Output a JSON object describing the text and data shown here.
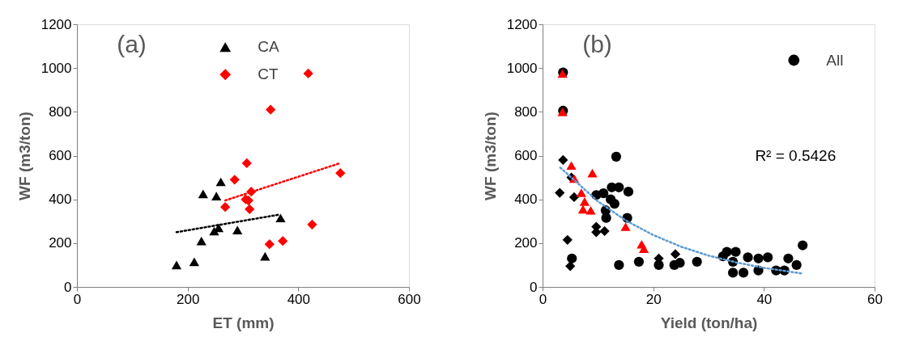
{
  "chart_data": [
    {
      "type": "scatter",
      "xlabel": "ET (mm)",
      "ylabel": "WF (m3/ton)",
      "xlim": [
        0,
        600
      ],
      "ylim": [
        0,
        1200
      ],
      "xticks": [
        0,
        200,
        400,
        600
      ],
      "yticks": [
        0,
        200,
        400,
        600,
        800,
        1000,
        1200
      ],
      "grid": false,
      "legend": "top",
      "annotations": [
        "(a)"
      ],
      "series": [
        {
          "name": "CA",
          "marker": "triangle",
          "color": "#000000",
          "x": [
            180,
            212,
            225,
            228,
            248,
            256,
            252,
            260,
            290,
            340,
            368
          ],
          "values": [
            100,
            115,
            210,
            425,
            255,
            270,
            415,
            480,
            260,
            140,
            315
          ]
        },
        {
          "name": "CT",
          "marker": "diamond",
          "color": "#ff0000",
          "x": [
            268,
            285,
            307,
            305,
            315,
            312,
            350,
            348,
            372,
            418,
            425,
            476,
            310
          ],
          "values": [
            365,
            490,
            565,
            400,
            435,
            355,
            810,
            195,
            210,
            975,
            285,
            520,
            395
          ]
        },
        {
          "type": "line",
          "marker": "none",
          "line_style": "dotted",
          "color": "#000000",
          "x": [
            180,
            365
          ],
          "values": [
            250,
            330
          ]
        },
        {
          "type": "line",
          "marker": "none",
          "line_style": "dotted",
          "color": "#ff0000",
          "x": [
            268,
            475
          ],
          "values": [
            395,
            565
          ]
        }
      ]
    },
    {
      "type": "scatter",
      "xlabel": "Yield (ton/ha)",
      "ylabel": "WF (m3/ton)",
      "xlim": [
        0,
        60
      ],
      "ylim": [
        0,
        1200
      ],
      "xticks": [
        0,
        20,
        40,
        60
      ],
      "yticks": [
        0,
        200,
        400,
        600,
        800,
        1000,
        1200
      ],
      "grid": false,
      "legend": "top right",
      "annotations": [
        "(b)",
        "R² = 0.5426"
      ],
      "series": [
        {
          "name": "All",
          "marker": "circle",
          "color": "#000000",
          "x": [
            13.3,
            12.5,
            13.8,
            11,
            15.5,
            12.3,
            13,
            11.4,
            11.5,
            15.3,
            9.7,
            13.8,
            17.4,
            21,
            23.8,
            24.8,
            27.9,
            32.6,
            33.3,
            34.9,
            34.4,
            34.4,
            36.3,
            37.1,
            39,
            39,
            40.7,
            42.2,
            43.7,
            44.4,
            45.9,
            47,
            5.3,
            3.7,
            3.7
          ],
          "values": [
            595,
            455,
            455,
            428,
            435,
            400,
            380,
            350,
            315,
            315,
            420,
            100,
            115,
            100,
            100,
            110,
            115,
            140,
            160,
            160,
            115,
            65,
            65,
            135,
            130,
            75,
            135,
            75,
            75,
            130,
            100,
            190,
            130,
            980,
            805
          ]
        },
        {
          "marker": "diamond",
          "color": "#000000",
          "x": [
            3.7,
            3.1,
            4.5,
            5,
            5.7,
            9.7,
            11.2,
            9.7,
            5.2,
            21,
            24
          ],
          "values": [
            580,
            430,
            215,
            95,
            410,
            275,
            255,
            250,
            500,
            130,
            150
          ]
        },
        {
          "marker": "triangle",
          "color": "#ff0000",
          "x": [
            3.6,
            3.6,
            5.2,
            9,
            5.7,
            7,
            7.6,
            7.3,
            8.7,
            15,
            17.9,
            18.3
          ],
          "values": [
            975,
            800,
            555,
            520,
            495,
            430,
            390,
            355,
            350,
            275,
            195,
            175
          ]
        },
        {
          "type": "line",
          "marker": "none",
          "line_style": "dotted",
          "color": "#5b9bd5",
          "x": [
            3.2,
            10,
            15,
            20,
            25,
            30,
            35,
            40,
            47
          ],
          "values": [
            545,
            391,
            304,
            237,
            184,
            143,
            112,
            87,
            61
          ]
        }
      ]
    }
  ]
}
